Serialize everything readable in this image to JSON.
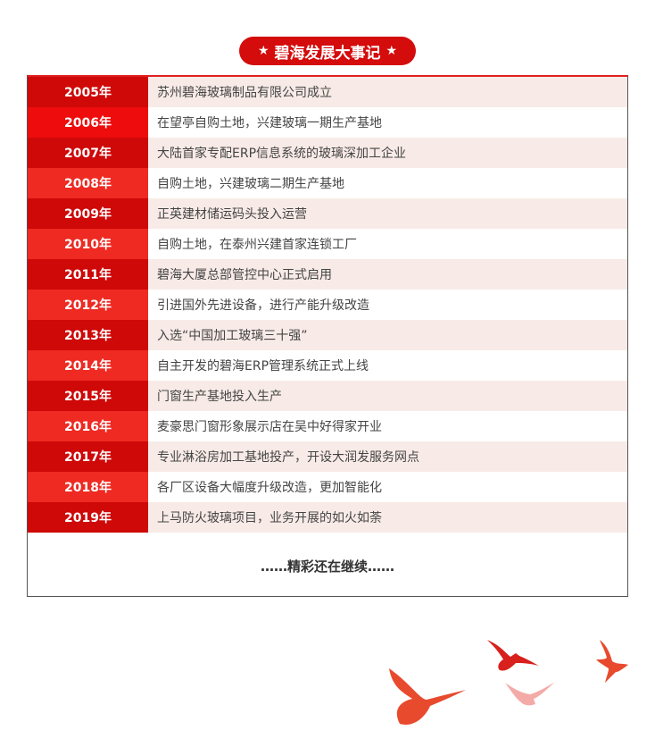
{
  "title": "碧海发展大事记",
  "colors": {
    "dark": "#cf0808",
    "bright": "#ee2a22",
    "accent": "#ee0c0c"
  },
  "rows": [
    {
      "year": "2005年",
      "event": "苏州碧海玻璃制品有限公司成立"
    },
    {
      "year": "2006年",
      "event": "在望亭自购土地，兴建玻璃一期生产基地"
    },
    {
      "year": "2007年",
      "event": "大陆首家专配ERP信息系统的玻璃深加工企业"
    },
    {
      "year": "2008年",
      "event": "自购土地，兴建玻璃二期生产基地"
    },
    {
      "year": "2009年",
      "event": "正英建材储运码头投入运营"
    },
    {
      "year": "2010年",
      "event": "自购土地，在泰州兴建首家连锁工厂"
    },
    {
      "year": "2011年",
      "event": "碧海大厦总部管控中心正式启用"
    },
    {
      "year": "2012年",
      "event": "引进国外先进设备，进行产能升级改造"
    },
    {
      "year": "2013年",
      "event": "入选“中国加工玻璃三十强”"
    },
    {
      "year": "2014年",
      "event": "自主开发的碧海ERP管理系统正式上线"
    },
    {
      "year": "2015年",
      "event": " 门窗生产基地投入生产"
    },
    {
      "year": "2016年",
      "event": "麦豪思门窗形象展示店在吴中好得家开业"
    },
    {
      "year": "2017年",
      "event": "专业淋浴房加工基地投产，开设大润发服务网点"
    },
    {
      "year": "2018年",
      "event": "各厂区设备大幅度升级改造，更加智能化"
    },
    {
      "year": "2019年",
      "event": "上马防火玻璃项目，业务开展的如火如荼"
    }
  ],
  "footer": "……精彩还在继续……"
}
